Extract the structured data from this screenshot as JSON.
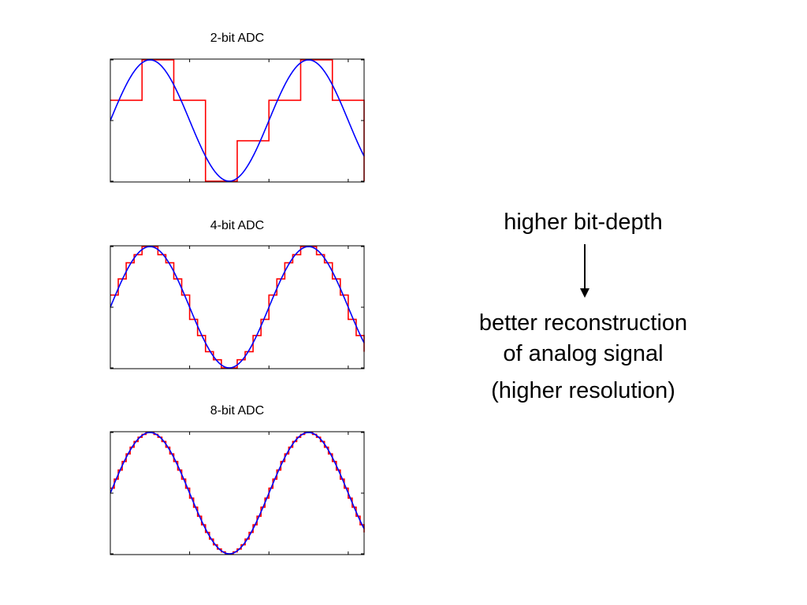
{
  "chart_data": [
    {
      "type": "line",
      "title": "2-bit ADC",
      "bits": 2,
      "xlim": [
        0,
        1.6
      ],
      "ylim": [
        -1,
        1
      ],
      "series": [
        {
          "kind": "sampled-sinusoid",
          "color": "#0000ff",
          "amplitude": 1,
          "phase_rad": 0,
          "cycles_per_unit": 1
        },
        {
          "kind": "quantized-step",
          "color": "#ff0000",
          "levels": [
            -1,
            -0.333,
            0.333,
            1
          ],
          "sample_interval": 0.2
        }
      ]
    },
    {
      "type": "line",
      "title": "4-bit ADC",
      "bits": 4,
      "xlim": [
        0,
        1.6
      ],
      "ylim": [
        -1,
        1
      ],
      "series": [
        {
          "kind": "sampled-sinusoid",
          "color": "#0000ff",
          "amplitude": 1,
          "phase_rad": 0,
          "cycles_per_unit": 1
        },
        {
          "kind": "quantized-step",
          "color": "#ff0000",
          "level_count": 16,
          "sample_interval": 0.05
        }
      ]
    },
    {
      "type": "line",
      "title": "8-bit ADC",
      "bits": 8,
      "xlim": [
        0,
        1.6
      ],
      "ylim": [
        -1,
        1
      ],
      "series": [
        {
          "kind": "sampled-sinusoid",
          "color": "#0000ff",
          "amplitude": 1,
          "phase_rad": 0,
          "cycles_per_unit": 1
        },
        {
          "kind": "quantized-step",
          "color": "#ff0000",
          "level_count": 256,
          "sample_interval": 0.025
        }
      ]
    }
  ],
  "caption": {
    "top": "higher bit-depth",
    "bottom_lines": [
      "better reconstruction",
      "of analog signal",
      "(higher resolution)"
    ]
  },
  "colors": {
    "signal": "#0000ff",
    "quantized": "#ff0000",
    "axes": "#000000"
  }
}
